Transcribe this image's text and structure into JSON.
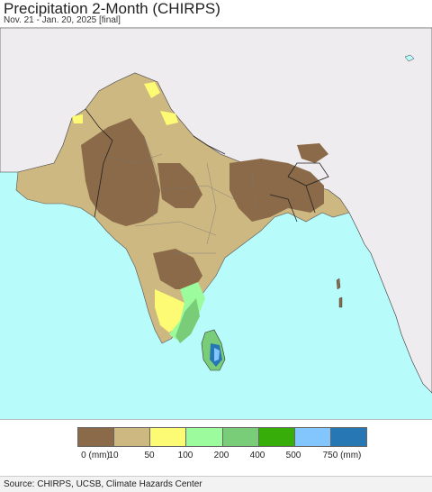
{
  "header": {
    "title": "Precipitation 2-Month (CHIRPS)",
    "subtitle": "Nov. 21 - Jan. 20, 2025 [final]"
  },
  "legend": {
    "colors": [
      "#8a6a48",
      "#cdb882",
      "#fdfb73",
      "#9cfb9c",
      "#79cd79",
      "#36ad08",
      "#82c6fd",
      "#2877b5"
    ],
    "labels": [
      "0 (mm)",
      "10",
      "50",
      "100",
      "200",
      "400",
      "500",
      "750 (mm)"
    ]
  },
  "map": {
    "ocean_color": "#b8fbfb",
    "land_outside_color": "#efecf0",
    "region_color": "#cdb882"
  },
  "footer": {
    "source": "Source: CHIRPS, UCSB, Climate Hazards Center"
  }
}
